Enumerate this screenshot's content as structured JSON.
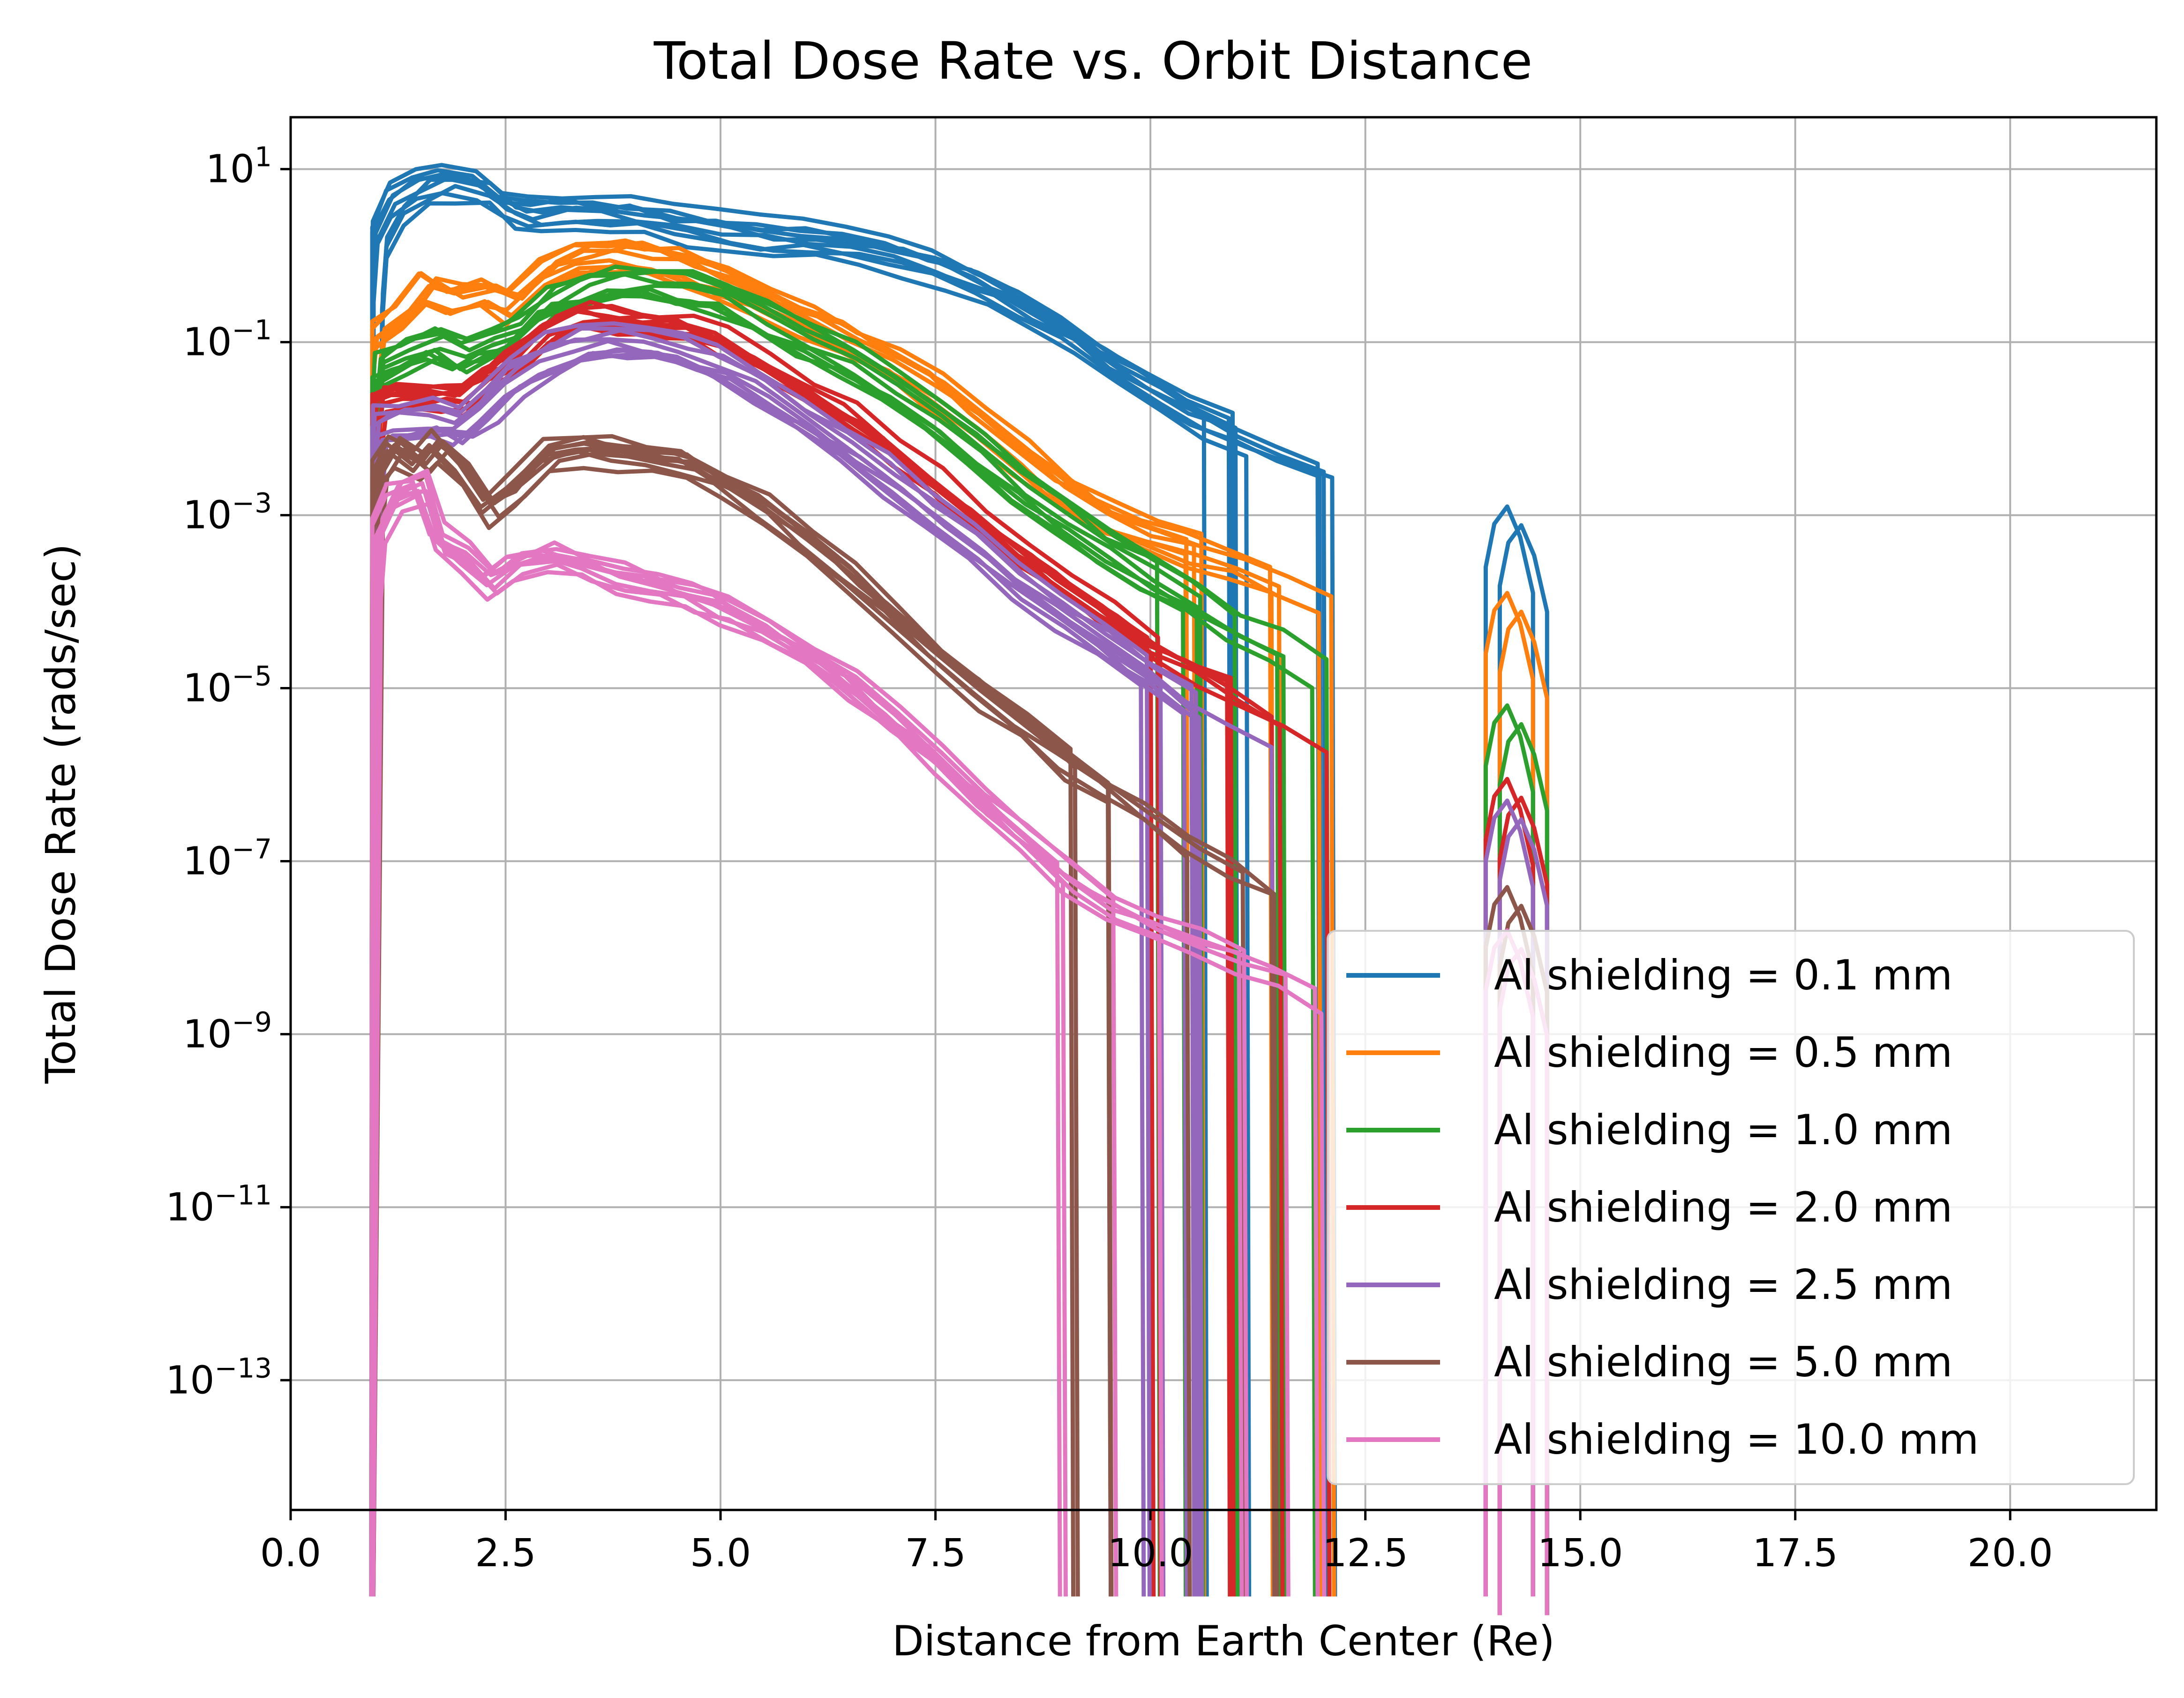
{
  "chart_data": {
    "type": "line",
    "title": "Total Dose Rate vs. Orbit Distance",
    "xlabel": "Distance from Earth Center (Re)",
    "ylabel": "Total Dose Rate (rads/sec)",
    "xlim": [
      0.0,
      21.7
    ],
    "ylim_log10": [
      -14.5,
      1.6
    ],
    "y_scale": "log",
    "grid": true,
    "legend_position": "lower-right",
    "x_ticks": [
      {
        "value": 0.0,
        "label": "0.0"
      },
      {
        "value": 2.5,
        "label": "2.5"
      },
      {
        "value": 5.0,
        "label": "5.0"
      },
      {
        "value": 7.5,
        "label": "7.5"
      },
      {
        "value": 10.0,
        "label": "10.0"
      },
      {
        "value": 12.5,
        "label": "12.5"
      },
      {
        "value": 15.0,
        "label": "15.0"
      },
      {
        "value": 17.5,
        "label": "17.5"
      },
      {
        "value": 20.0,
        "label": "20.0"
      }
    ],
    "y_ticks": [
      {
        "exp": 1,
        "base": "10",
        "sup": "1"
      },
      {
        "exp": -1,
        "base": "10",
        "sup": "−1"
      },
      {
        "exp": -3,
        "base": "10",
        "sup": "−3"
      },
      {
        "exp": -5,
        "base": "10",
        "sup": "−5"
      },
      {
        "exp": -7,
        "base": "10",
        "sup": "−7"
      },
      {
        "exp": -9,
        "base": "10",
        "sup": "−9"
      },
      {
        "exp": -11,
        "base": "10",
        "sup": "−11"
      },
      {
        "exp": -13,
        "base": "10",
        "sup": "−13"
      }
    ],
    "series": [
      {
        "name": "Al shielding = 0.1 mm",
        "color": "#1f77b4",
        "x": [
          0.95,
          1.0,
          1.2,
          1.5,
          1.8,
          2.2,
          2.5,
          2.8,
          3.2,
          3.6,
          4.0,
          4.5,
          5.0,
          5.5,
          6.0,
          6.5,
          7.0,
          7.5,
          8.0,
          8.5,
          9.0,
          9.5,
          10.0,
          10.5,
          11.0,
          11.5,
          12.0,
          12.3,
          12.4
        ],
        "y_log10": [
          -0.5,
          0.2,
          0.6,
          0.8,
          0.85,
          0.8,
          0.55,
          0.45,
          0.5,
          0.5,
          0.45,
          0.35,
          0.28,
          0.22,
          0.18,
          0.1,
          0.0,
          -0.15,
          -0.35,
          -0.6,
          -0.9,
          -1.25,
          -1.55,
          -1.85,
          -2.05,
          -2.3,
          -2.5,
          -3.0,
          -4.0
        ]
      },
      {
        "name": "Al shielding = 0.5 mm",
        "color": "#ff7f0e",
        "x": [
          0.95,
          1.0,
          1.3,
          1.6,
          1.9,
          2.3,
          2.6,
          3.0,
          3.4,
          3.8,
          4.2,
          4.6,
          5.0,
          5.5,
          6.0,
          6.5,
          7.0,
          7.5,
          8.0,
          8.5,
          9.0,
          9.5,
          10.0,
          10.5,
          11.0,
          11.5,
          12.0,
          12.3,
          12.4
        ],
        "y_log10": [
          -1.3,
          -0.9,
          -0.7,
          -0.35,
          -0.5,
          -0.4,
          -0.55,
          -0.15,
          0.0,
          0.05,
          0.0,
          -0.1,
          -0.25,
          -0.45,
          -0.7,
          -0.95,
          -1.2,
          -1.5,
          -1.9,
          -2.3,
          -2.7,
          -3.0,
          -3.2,
          -3.35,
          -3.5,
          -3.7,
          -3.95,
          -4.3,
          -5.0
        ]
      },
      {
        "name": "Al shielding = 1.0 mm",
        "color": "#2ca02c",
        "x": [
          0.95,
          1.0,
          1.3,
          1.7,
          2.0,
          2.3,
          2.6,
          3.0,
          3.4,
          3.8,
          4.2,
          4.6,
          5.0,
          5.5,
          6.0,
          6.5,
          7.0,
          7.5,
          8.0,
          8.5,
          9.0,
          9.5,
          10.0,
          10.5,
          11.0,
          11.5,
          12.0,
          12.3,
          12.4
        ],
        "y_log10": [
          -1.9,
          -1.3,
          -1.15,
          -1.0,
          -1.15,
          -1.0,
          -0.9,
          -0.55,
          -0.4,
          -0.3,
          -0.3,
          -0.35,
          -0.45,
          -0.7,
          -0.95,
          -1.2,
          -1.5,
          -1.85,
          -2.25,
          -2.65,
          -3.0,
          -3.35,
          -3.65,
          -3.95,
          -4.25,
          -4.5,
          -4.8,
          -5.2,
          -6.5
        ]
      },
      {
        "name": "Al shielding = 2.0 mm",
        "color": "#d62728",
        "x": [
          0.95,
          1.0,
          1.3,
          1.7,
          2.0,
          2.3,
          2.6,
          3.0,
          3.4,
          3.8,
          4.2,
          4.6,
          5.0,
          5.5,
          6.0,
          6.5,
          7.0,
          7.5,
          8.0,
          8.5,
          9.0,
          9.5,
          10.0,
          10.5,
          11.0,
          11.5,
          12.0,
          12.3,
          12.4
        ],
        "y_log10": [
          -2.2,
          -1.75,
          -1.7,
          -1.7,
          -1.75,
          -1.5,
          -1.3,
          -0.95,
          -0.75,
          -0.8,
          -0.85,
          -0.9,
          -1.05,
          -1.35,
          -1.65,
          -1.95,
          -2.3,
          -2.7,
          -3.1,
          -3.5,
          -3.85,
          -4.2,
          -4.55,
          -4.85,
          -5.1,
          -5.4,
          -5.7,
          -6.2,
          -7.3
        ]
      },
      {
        "name": "Al shielding = 2.5 mm",
        "color": "#9467bd",
        "x": [
          0.95,
          1.0,
          1.3,
          1.7,
          2.0,
          2.3,
          2.6,
          3.0,
          3.4,
          3.8,
          4.2,
          4.6,
          5.0,
          5.5,
          6.0,
          6.5,
          7.0,
          7.5,
          8.0,
          8.5,
          9.0,
          9.5,
          10.0,
          10.5,
          11.0,
          11.5,
          12.0,
          12.3,
          12.4
        ],
        "y_log10": [
          -2.5,
          -2.0,
          -1.9,
          -1.85,
          -1.95,
          -1.7,
          -1.4,
          -1.15,
          -1.0,
          -0.95,
          -1.0,
          -1.1,
          -1.25,
          -1.55,
          -1.85,
          -2.2,
          -2.55,
          -2.95,
          -3.35,
          -3.75,
          -4.1,
          -4.45,
          -4.8,
          -5.15,
          -5.45,
          -5.75,
          -6.1,
          -6.6,
          -7.6
        ]
      },
      {
        "name": "Al shielding = 5.0 mm",
        "color": "#8c564b",
        "x": [
          0.95,
          1.0,
          1.2,
          1.5,
          1.7,
          2.0,
          2.3,
          2.6,
          3.0,
          3.4,
          3.8,
          4.2,
          4.6,
          5.0,
          5.5,
          6.0,
          6.5,
          7.0,
          7.5,
          8.0,
          8.5,
          9.0,
          9.5,
          10.0,
          10.5,
          11.0,
          11.5,
          12.0,
          12.3
        ],
        "y_log10": [
          -3.0,
          -2.5,
          -2.2,
          -2.4,
          -2.2,
          -2.5,
          -2.9,
          -2.7,
          -2.3,
          -2.2,
          -2.25,
          -2.3,
          -2.4,
          -2.6,
          -2.9,
          -3.3,
          -3.7,
          -4.15,
          -4.6,
          -5.0,
          -5.4,
          -5.8,
          -6.15,
          -6.5,
          -6.85,
          -7.15,
          -7.45,
          -7.8,
          -8.8
        ]
      },
      {
        "name": "Al shielding = 10.0 mm",
        "color": "#e377c2",
        "x": [
          0.95,
          1.0,
          1.2,
          1.5,
          1.7,
          2.0,
          2.3,
          2.6,
          3.0,
          3.4,
          3.8,
          4.2,
          4.6,
          5.0,
          5.5,
          6.0,
          6.5,
          7.0,
          7.5,
          8.0,
          8.5,
          9.0,
          9.5,
          10.0,
          10.5,
          11.0,
          11.5,
          12.0,
          12.3
        ],
        "y_log10": [
          -3.8,
          -3.2,
          -2.8,
          -2.7,
          -3.3,
          -3.5,
          -3.8,
          -3.6,
          -3.5,
          -3.6,
          -3.75,
          -3.85,
          -3.95,
          -4.1,
          -4.35,
          -4.65,
          -5.0,
          -5.4,
          -5.85,
          -6.3,
          -6.75,
          -7.2,
          -7.55,
          -7.75,
          -7.95,
          -8.15,
          -8.35,
          -8.6,
          -9.0
        ]
      }
    ],
    "high_orbit_band": {
      "x": [
        13.9,
        14.0,
        14.15,
        14.3,
        14.45
      ],
      "peaks_log10": [
        -2.9,
        -3.9,
        -5.2,
        -6.05,
        -6.3,
        -7.3,
        -7.8
      ]
    }
  }
}
